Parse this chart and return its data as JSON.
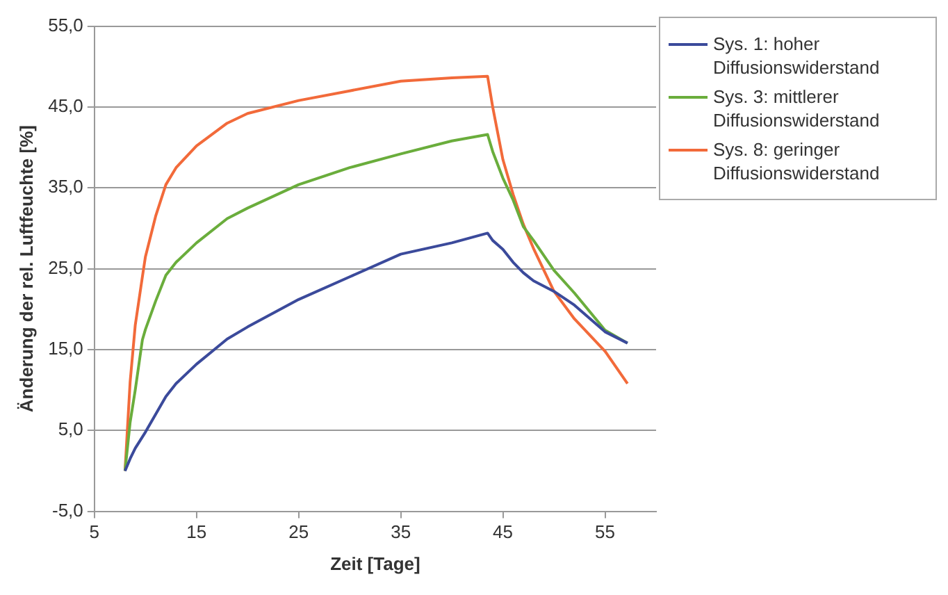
{
  "chart_data": {
    "type": "line",
    "xlabel": "Zeit [Tage]",
    "ylabel": "Änderung der rel. Luftfeuchte [%]",
    "x": [
      8,
      8.5,
      9,
      9.7,
      10,
      11,
      12,
      13,
      15,
      18,
      20,
      25,
      30,
      35,
      40,
      43.5,
      44,
      45,
      46,
      47,
      48,
      50,
      52,
      55,
      57.2
    ],
    "series": [
      {
        "name": "Sys. 1: hoher Diffusionswiderstand",
        "color": "#3b4a9b",
        "values": [
          0,
          1.5,
          2.8,
          4.2,
          4.8,
          7,
          9.2,
          10.8,
          13.2,
          16.3,
          17.8,
          21.2,
          24,
          26.8,
          28.2,
          29.4,
          28.5,
          27.4,
          25.8,
          24.5,
          23.5,
          22.2,
          20.5,
          17.2,
          15.8
        ]
      },
      {
        "name": "Sys. 3: mittlerer Diffusionswiderstand",
        "color": "#6aad3c",
        "values": [
          0,
          6,
          10,
          16.2,
          17.5,
          21,
          24.2,
          25.8,
          28.2,
          31.2,
          32.5,
          35.4,
          37.5,
          39.2,
          40.8,
          41.6,
          39.5,
          36.2,
          33.5,
          30.2,
          28.5,
          24.8,
          22,
          17.4,
          15.8
        ]
      },
      {
        "name": "Sys. 8: geringer Diffusionswiderstand",
        "color": "#f26a3a",
        "values": [
          0,
          11,
          18,
          24,
          26.5,
          31.5,
          35.4,
          37.5,
          40.2,
          43,
          44.2,
          45.8,
          47,
          48.2,
          48.6,
          48.8,
          45,
          38.5,
          34.2,
          30.5,
          27.5,
          22.2,
          18.8,
          14.8,
          10.8
        ]
      }
    ],
    "xlim": [
      5,
      60
    ],
    "xticks": [
      5,
      15,
      25,
      35,
      45,
      55
    ],
    "ylim": [
      -5,
      55
    ],
    "yticks": [
      {
        "value": -5,
        "label": "-5,0"
      },
      {
        "value": 5,
        "label": "5,0"
      },
      {
        "value": 15,
        "label": "15,0"
      },
      {
        "value": 25,
        "label": "25,0"
      },
      {
        "value": 35,
        "label": "35,0"
      },
      {
        "value": 45,
        "label": "45,0"
      },
      {
        "value": 55,
        "label": "55,0"
      }
    ],
    "grid": "y",
    "legend": "top right",
    "marker": "none",
    "line_style": "solid"
  }
}
